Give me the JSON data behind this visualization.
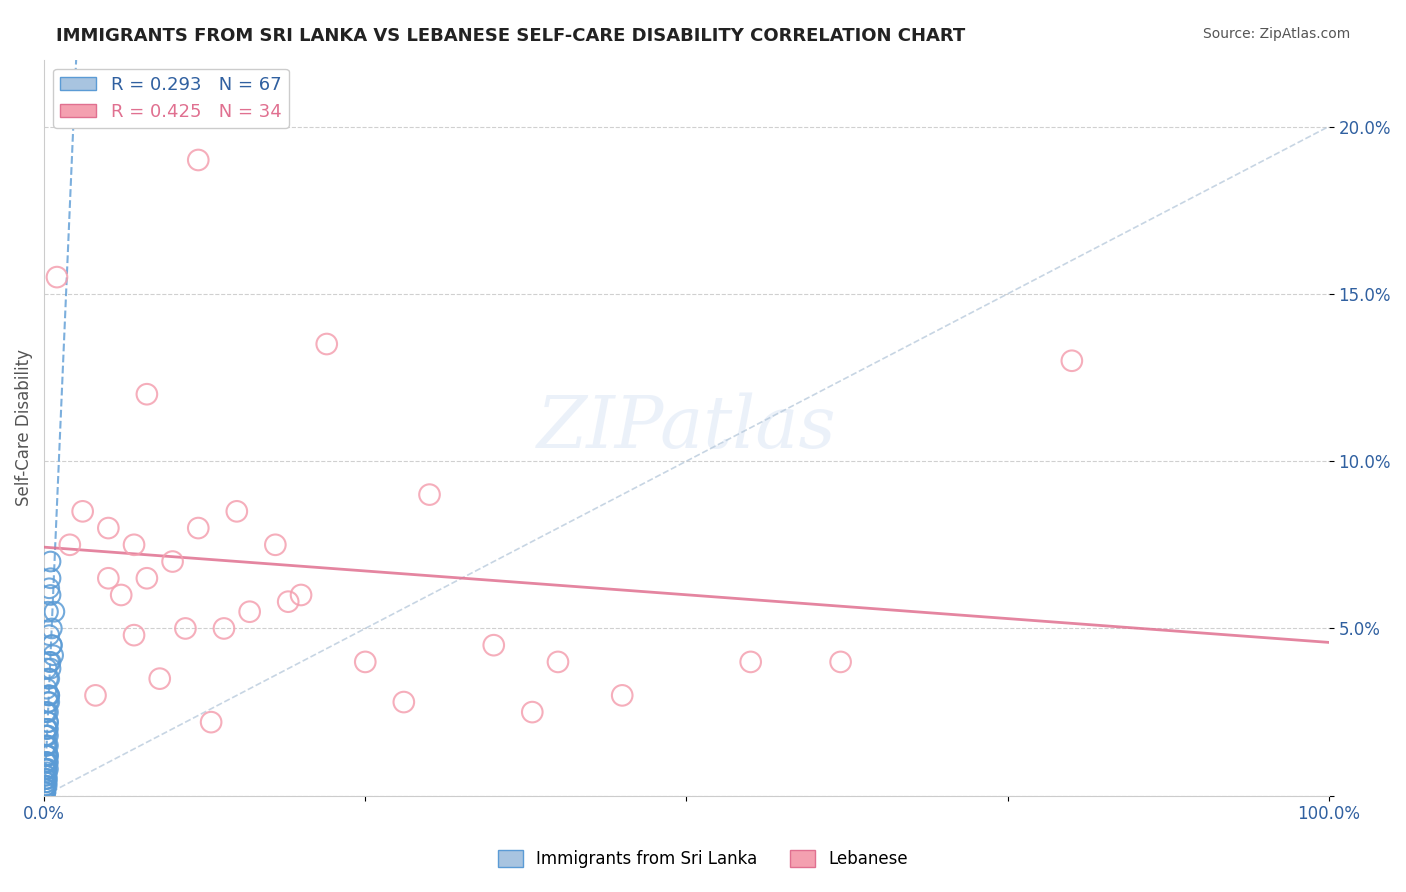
{
  "title": "IMMIGRANTS FROM SRI LANKA VS LEBANESE SELF-CARE DISABILITY CORRELATION CHART",
  "source": "Source: ZipAtlas.com",
  "xlabel": "",
  "ylabel": "Self-Care Disability",
  "xlim": [
    0,
    1.0
  ],
  "ylim": [
    0,
    0.22
  ],
  "yticks": [
    0,
    0.05,
    0.1,
    0.15,
    0.2
  ],
  "ytick_labels": [
    "",
    "5.0%",
    "10.0%",
    "15.0%",
    "20.0%"
  ],
  "xticks": [
    0,
    0.25,
    0.5,
    0.75,
    1.0
  ],
  "xtick_labels": [
    "0.0%",
    "",
    "",
    "",
    "100.0%"
  ],
  "legend_series": [
    {
      "label": "R = 0.293   N = 67",
      "color": "#a8c4e0"
    },
    {
      "label": "R = 0.425   N = 34",
      "color": "#f4a0b0"
    }
  ],
  "legend_loc": "upper left",
  "sri_lanka_x": [
    0.003,
    0.005,
    0.007,
    0.002,
    0.004,
    0.006,
    0.003,
    0.008,
    0.001,
    0.002,
    0.004,
    0.003,
    0.006,
    0.005,
    0.002,
    0.001,
    0.003,
    0.002,
    0.004,
    0.005,
    0.001,
    0.002,
    0.003,
    0.004,
    0.002,
    0.003,
    0.001,
    0.005,
    0.002,
    0.003,
    0.004,
    0.006,
    0.002,
    0.001,
    0.003,
    0.004,
    0.002,
    0.001,
    0.002,
    0.003,
    0.005,
    0.002,
    0.001,
    0.003,
    0.002,
    0.004,
    0.001,
    0.002,
    0.003,
    0.001,
    0.002,
    0.001,
    0.003,
    0.002,
    0.001,
    0.002,
    0.001,
    0.003,
    0.002,
    0.001,
    0.002,
    0.001,
    0.002,
    0.001,
    0.003,
    0.002,
    0.001
  ],
  "sri_lanka_y": [
    0.035,
    0.04,
    0.042,
    0.038,
    0.03,
    0.045,
    0.028,
    0.055,
    0.025,
    0.032,
    0.048,
    0.022,
    0.05,
    0.06,
    0.02,
    0.018,
    0.055,
    0.025,
    0.062,
    0.07,
    0.015,
    0.02,
    0.03,
    0.04,
    0.01,
    0.012,
    0.008,
    0.065,
    0.018,
    0.025,
    0.035,
    0.045,
    0.015,
    0.01,
    0.02,
    0.03,
    0.012,
    0.008,
    0.015,
    0.018,
    0.038,
    0.01,
    0.005,
    0.022,
    0.012,
    0.028,
    0.006,
    0.01,
    0.015,
    0.004,
    0.008,
    0.003,
    0.012,
    0.007,
    0.002,
    0.005,
    0.003,
    0.01,
    0.006,
    0.002,
    0.005,
    0.002,
    0.004,
    0.001,
    0.008,
    0.003,
    0.001
  ],
  "lebanese_x": [
    0.01,
    0.12,
    0.08,
    0.22,
    0.05,
    0.15,
    0.3,
    0.18,
    0.25,
    0.4,
    0.1,
    0.06,
    0.03,
    0.08,
    0.55,
    0.62,
    0.2,
    0.35,
    0.07,
    0.12,
    0.04,
    0.09,
    0.14,
    0.28,
    0.45,
    0.38,
    0.02,
    0.16,
    0.05,
    0.8,
    0.11,
    0.19,
    0.07,
    0.13
  ],
  "lebanese_y": [
    0.155,
    0.19,
    0.12,
    0.135,
    0.08,
    0.085,
    0.09,
    0.075,
    0.04,
    0.04,
    0.07,
    0.06,
    0.085,
    0.065,
    0.04,
    0.04,
    0.06,
    0.045,
    0.075,
    0.08,
    0.03,
    0.035,
    0.05,
    0.028,
    0.03,
    0.025,
    0.075,
    0.055,
    0.065,
    0.13,
    0.05,
    0.058,
    0.048,
    0.022
  ],
  "sri_lanka_color": "#5b9bd5",
  "lebanese_color": "#f4a0b0",
  "sri_lanka_trend_color": "#5b9bd5",
  "lebanese_trend_color": "#e07090",
  "diagonal_color": "#b0c4d8",
  "watermark": "ZIPatlas",
  "background_color": "#ffffff",
  "grid_color": "#d0d0d0"
}
